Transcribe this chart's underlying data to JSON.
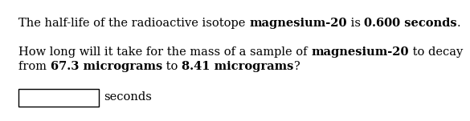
{
  "line1_normal": "The half-life of the radioactive isotope ",
  "line1_bold1": "magnesium-20",
  "line1_mid": " is ",
  "line1_bold2": "0.600 seconds",
  "line1_end": ".",
  "line2_normal1": "How long will it take for the mass of a sample of ",
  "line2_bold1": "magnesium-20",
  "line2_normal2": " to decay",
  "line3_normal1": "from ",
  "line3_bold1": "67.3 micrograms",
  "line3_normal2": " to ",
  "line3_bold2": "8.41 micrograms",
  "line3_end": "?",
  "label_seconds": "seconds",
  "bg_color": "#ffffff",
  "text_color": "#000000",
  "font_size": 10.5
}
